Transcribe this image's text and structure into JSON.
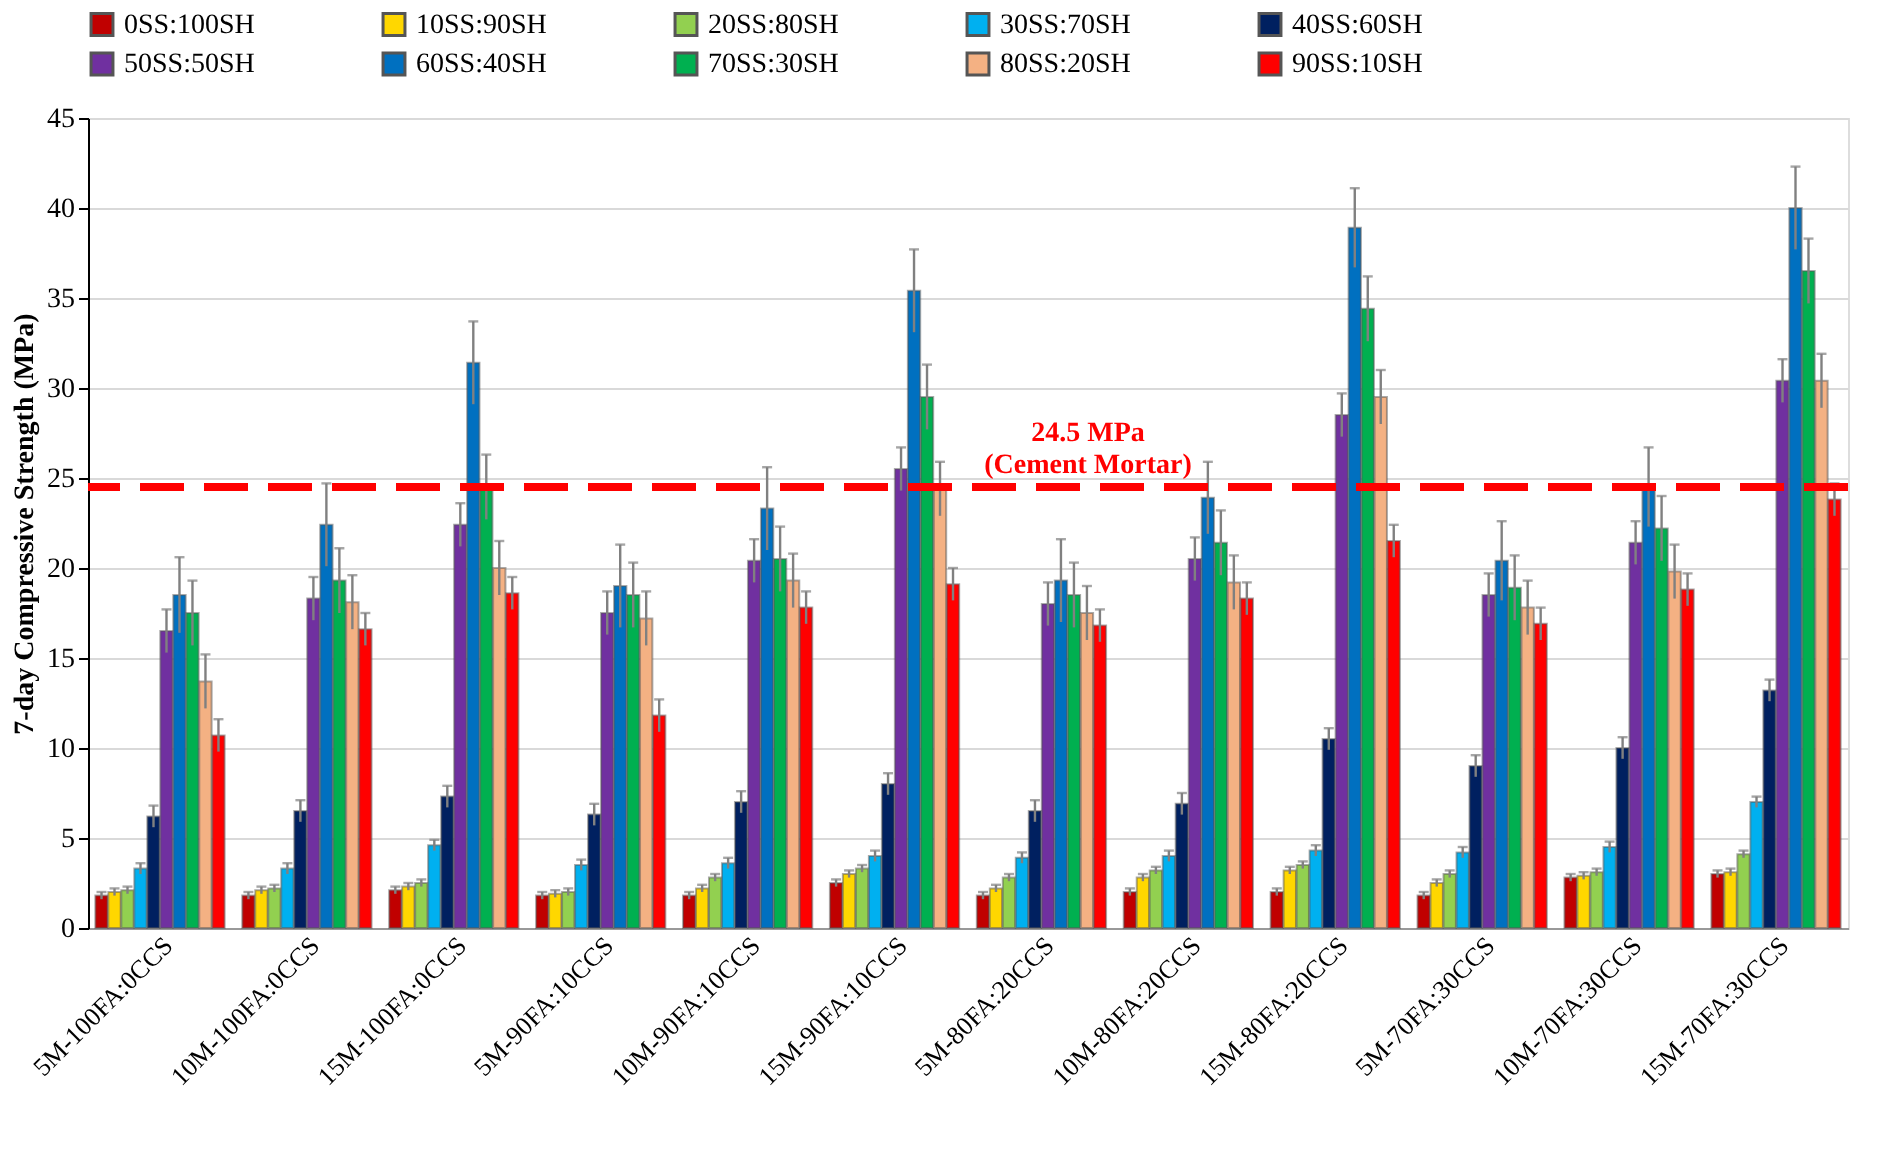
{
  "chart_data": {
    "type": "bar",
    "ylabel": "7-day Compressive Strength (MPa)",
    "categories": [
      "5M-100FA:0CCS",
      "10M-100FA:0CCS",
      "15M-100FA:0CCS",
      "5M-90FA:10CCS",
      "10M-90FA:10CCS",
      "15M-90FA:10CCS",
      "5M-80FA:20CCS",
      "10M-80FA:20CCS",
      "15M-80FA:20CCS",
      "5M-70FA:30CCS",
      "10M-70FA:30CCS",
      "15M-70FA:30CCS"
    ],
    "series": [
      {
        "name": "0SS:100SH",
        "color": "#c00000",
        "values": [
          1.8,
          1.8,
          2.1,
          1.8,
          1.8,
          2.5,
          1.8,
          2.0,
          2.0,
          1.8,
          2.8,
          3.0
        ],
        "errors": [
          0.2,
          0.2,
          0.2,
          0.2,
          0.2,
          0.2,
          0.2,
          0.2,
          0.2,
          0.2,
          0.2,
          0.2
        ]
      },
      {
        "name": "10SS:90SH",
        "color": "#ffd700",
        "values": [
          2.0,
          2.1,
          2.3,
          1.9,
          2.2,
          3.0,
          2.2,
          2.8,
          3.2,
          2.5,
          2.9,
          3.1
        ],
        "errors": [
          0.2,
          0.2,
          0.2,
          0.2,
          0.2,
          0.2,
          0.2,
          0.2,
          0.2,
          0.2,
          0.2,
          0.2
        ]
      },
      {
        "name": "20SS:80SH",
        "color": "#92d050",
        "values": [
          2.1,
          2.2,
          2.5,
          2.0,
          2.8,
          3.3,
          2.8,
          3.2,
          3.5,
          3.0,
          3.1,
          4.1
        ],
        "errors": [
          0.2,
          0.2,
          0.2,
          0.2,
          0.2,
          0.2,
          0.2,
          0.2,
          0.2,
          0.2,
          0.2,
          0.2
        ]
      },
      {
        "name": "30SS:70SH",
        "color": "#00b0f0",
        "values": [
          3.3,
          3.3,
          4.6,
          3.5,
          3.6,
          4.0,
          3.9,
          4.0,
          4.3,
          4.2,
          4.5,
          7.0
        ],
        "errors": [
          0.3,
          0.3,
          0.3,
          0.3,
          0.3,
          0.3,
          0.3,
          0.3,
          0.3,
          0.3,
          0.3,
          0.3
        ]
      },
      {
        "name": "40SS:60SH",
        "color": "#002060",
        "values": [
          6.2,
          6.5,
          7.3,
          6.3,
          7.0,
          8.0,
          6.5,
          6.9,
          10.5,
          9.0,
          10.0,
          13.2
        ],
        "errors": [
          0.6,
          0.6,
          0.6,
          0.6,
          0.6,
          0.6,
          0.6,
          0.6,
          0.6,
          0.6,
          0.6,
          0.6
        ]
      },
      {
        "name": "50SS:50SH",
        "color": "#7030a0",
        "values": [
          16.5,
          18.3,
          22.4,
          17.5,
          20.4,
          25.5,
          18.0,
          20.5,
          28.5,
          18.5,
          21.4,
          30.4
        ],
        "errors": [
          1.2,
          1.2,
          1.2,
          1.2,
          1.2,
          1.2,
          1.2,
          1.2,
          1.2,
          1.2,
          1.2,
          1.2
        ]
      },
      {
        "name": "60SS:40SH",
        "color": "#0070c0",
        "values": [
          18.5,
          22.4,
          31.4,
          19.0,
          23.3,
          35.4,
          19.3,
          23.9,
          38.9,
          20.4,
          24.5,
          40.0
        ],
        "errors": [
          2.1,
          2.3,
          2.3,
          2.3,
          2.3,
          2.3,
          2.3,
          2.0,
          2.2,
          2.2,
          2.2,
          2.3
        ]
      },
      {
        "name": "70SS:30SH",
        "color": "#00b050",
        "values": [
          17.5,
          19.3,
          24.5,
          18.5,
          20.5,
          29.5,
          18.5,
          21.4,
          34.4,
          18.9,
          22.2,
          36.5
        ],
        "errors": [
          1.8,
          1.8,
          1.8,
          1.8,
          1.8,
          1.8,
          1.8,
          1.8,
          1.8,
          1.8,
          1.8,
          1.8
        ]
      },
      {
        "name": "80SS:20SH",
        "color": "#f4b183",
        "values": [
          13.7,
          18.1,
          20.0,
          17.2,
          19.3,
          24.4,
          17.5,
          19.2,
          29.5,
          17.8,
          19.8,
          30.4
        ],
        "errors": [
          1.5,
          1.5,
          1.5,
          1.5,
          1.5,
          1.5,
          1.5,
          1.5,
          1.5,
          1.5,
          1.5,
          1.5
        ]
      },
      {
        "name": "90SS:10SH",
        "color": "#ff0000",
        "values": [
          10.7,
          16.6,
          18.6,
          11.8,
          17.8,
          19.1,
          16.8,
          18.3,
          21.5,
          16.9,
          18.8,
          23.8
        ],
        "errors": [
          0.9,
          0.9,
          0.9,
          0.9,
          0.9,
          0.9,
          0.9,
          0.9,
          0.9,
          0.9,
          0.9,
          0.9
        ]
      }
    ],
    "ylim": [
      0,
      45
    ],
    "yticks": [
      0,
      5,
      10,
      15,
      20,
      25,
      30,
      35,
      40,
      45
    ],
    "grid": "y",
    "legend": "top",
    "ref_lines": [
      {
        "axis": "y",
        "value": 24.5,
        "label": "24.5 MPa\n(Cement Mortar)",
        "color": "#ff0000",
        "line_style": "dashed"
      }
    ]
  }
}
